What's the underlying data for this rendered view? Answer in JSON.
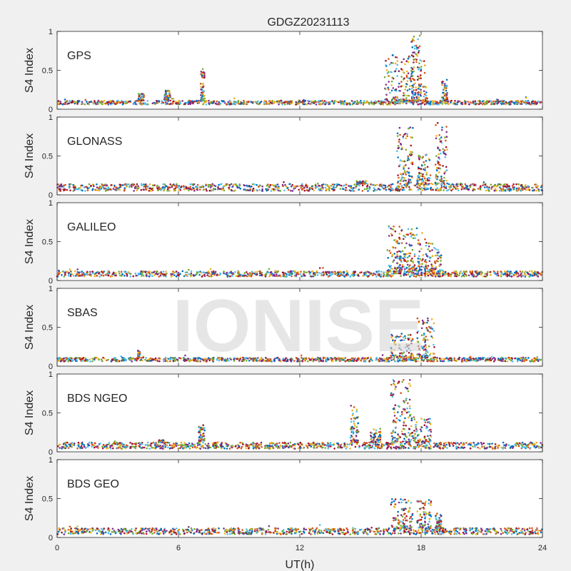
{
  "figure": {
    "title": "GDGZ20231113",
    "xlabel": "UT(h)",
    "watermark": "IONISE"
  },
  "colors": [
    "#0072bd",
    "#d95319",
    "#edb120",
    "#7e2f8e",
    "#77ac30",
    "#4dbeee",
    "#a2142f"
  ],
  "chart_data": [
    {
      "type": "scatter",
      "panel_label": "GPS",
      "ylabel": "S4 Index",
      "xlim": [
        0,
        24
      ],
      "ylim": [
        0,
        1
      ],
      "xticks": [
        0,
        6,
        12,
        18,
        24
      ],
      "yticks": [
        0,
        0.5,
        1
      ],
      "baseline": [
        0.06,
        0.11
      ],
      "bursts": [
        {
          "x": [
            16.2,
            18.3
          ],
          "ymax": 0.7
        },
        {
          "x": [
            17.5,
            18.0
          ],
          "ymax": 0.95
        },
        {
          "x": [
            7.1,
            7.3
          ],
          "ymax": 0.52
        },
        {
          "x": [
            4.0,
            4.3
          ],
          "ymax": 0.2
        },
        {
          "x": [
            5.3,
            5.6
          ],
          "ymax": 0.24
        },
        {
          "x": [
            19.0,
            19.3
          ],
          "ymax": 0.38
        }
      ]
    },
    {
      "type": "scatter",
      "panel_label": "GLONASS",
      "ylabel": "S4 Index",
      "xlim": [
        0,
        24
      ],
      "ylim": [
        0,
        1
      ],
      "xticks": [
        0,
        6,
        12,
        18,
        24
      ],
      "yticks": [
        0,
        0.5,
        1
      ],
      "baseline": [
        0.05,
        0.14
      ],
      "bursts": [
        {
          "x": [
            16.8,
            17.6
          ],
          "ymax": 0.88
        },
        {
          "x": [
            17.8,
            18.5
          ],
          "ymax": 0.55
        },
        {
          "x": [
            18.7,
            19.3
          ],
          "ymax": 0.93
        },
        {
          "x": [
            14.8,
            15.3
          ],
          "ymax": 0.18
        }
      ]
    },
    {
      "type": "scatter",
      "panel_label": "GALILEO",
      "ylabel": "S4 Index",
      "xlim": [
        0,
        24
      ],
      "ylim": [
        0,
        1
      ],
      "xticks": [
        0,
        6,
        12,
        18,
        24
      ],
      "yticks": [
        0,
        0.5,
        1
      ],
      "baseline": [
        0.05,
        0.12
      ],
      "bursts": [
        {
          "x": [
            16.3,
            17.2
          ],
          "ymax": 0.7
        },
        {
          "x": [
            17.2,
            18.2
          ],
          "ymax": 0.68
        },
        {
          "x": [
            18.2,
            19.0
          ],
          "ymax": 0.5
        }
      ]
    },
    {
      "type": "scatter",
      "panel_label": "SBAS",
      "ylabel": "S4 Index",
      "xlim": [
        0,
        24
      ],
      "ylim": [
        0,
        1
      ],
      "xticks": [
        0,
        6,
        12,
        18,
        24
      ],
      "yticks": [
        0,
        0.5,
        1
      ],
      "baseline": [
        0.06,
        0.11
      ],
      "bursts": [
        {
          "x": [
            16.5,
            17.6
          ],
          "ymax": 0.42
        },
        {
          "x": [
            17.8,
            18.7
          ],
          "ymax": 0.62
        },
        {
          "x": [
            4.0,
            4.1
          ],
          "ymax": 0.2
        }
      ]
    },
    {
      "type": "scatter",
      "panel_label": "BDS NGEO",
      "ylabel": "S4 Index",
      "xlim": [
        0,
        24
      ],
      "ylim": [
        0,
        1
      ],
      "xticks": [
        0,
        6,
        12,
        18,
        24
      ],
      "yticks": [
        0,
        0.5,
        1
      ],
      "baseline": [
        0.04,
        0.12
      ],
      "bursts": [
        {
          "x": [
            14.5,
            14.9
          ],
          "ymax": 0.6
        },
        {
          "x": [
            16.5,
            17.5
          ],
          "ymax": 0.95
        },
        {
          "x": [
            17.5,
            18.5
          ],
          "ymax": 0.45
        },
        {
          "x": [
            15.5,
            16.0
          ],
          "ymax": 0.3
        },
        {
          "x": [
            7.0,
            7.3
          ],
          "ymax": 0.35
        },
        {
          "x": [
            5.0,
            5.3
          ],
          "ymax": 0.15
        }
      ]
    },
    {
      "type": "scatter",
      "panel_label": "BDS GEO",
      "ylabel": "S4 Index",
      "xlim": [
        0,
        24
      ],
      "ylim": [
        0,
        1
      ],
      "xticks": [
        0,
        6,
        12,
        18,
        24
      ],
      "yticks": [
        0,
        0.5,
        1
      ],
      "baseline": [
        0.04,
        0.12
      ],
      "bursts": [
        {
          "x": [
            16.5,
            17.6
          ],
          "ymax": 0.5
        },
        {
          "x": [
            17.8,
            18.5
          ],
          "ymax": 0.52
        },
        {
          "x": [
            18.7,
            19.0
          ],
          "ymax": 0.32
        }
      ]
    }
  ]
}
